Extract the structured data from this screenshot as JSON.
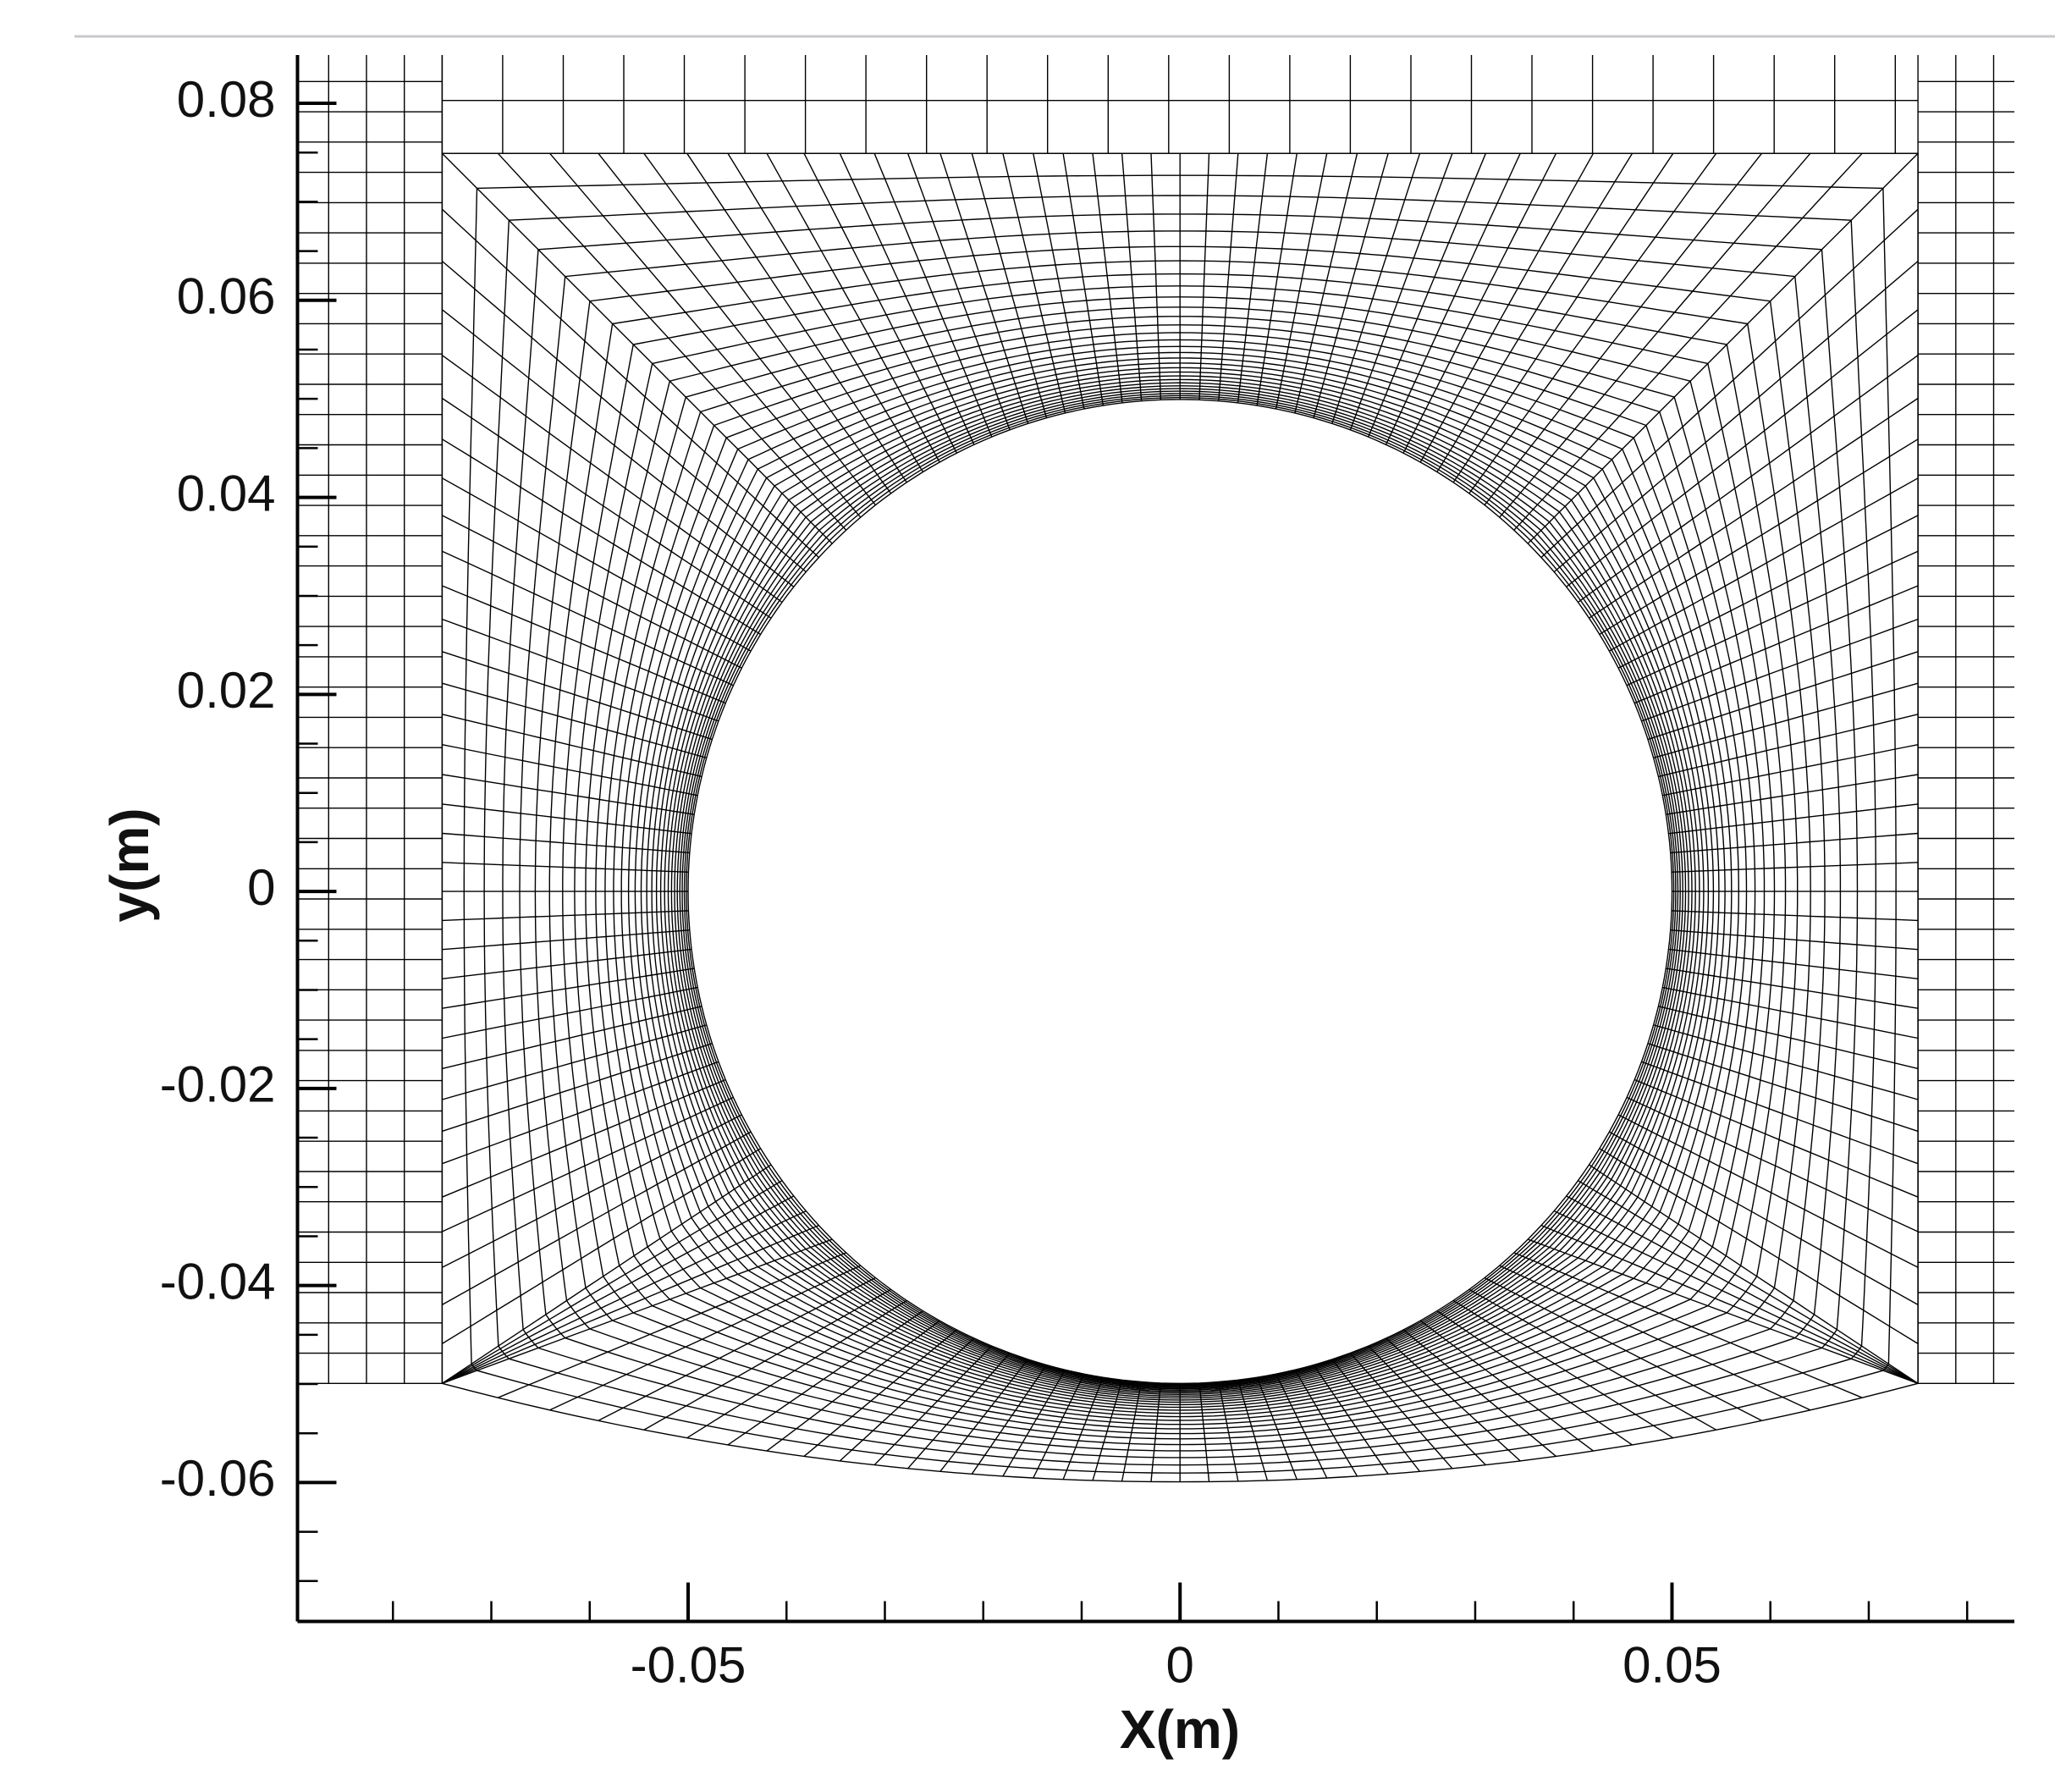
{
  "chart_data": {
    "type": "mesh",
    "xlabel": "X(m)",
    "ylabel": "y(m)",
    "xlim": [
      -0.0897,
      0.0848
    ],
    "ylim": [
      -0.0741,
      0.0849
    ],
    "xticks": [
      -0.05,
      0,
      0.05
    ],
    "yticks": [
      0.08,
      0.06,
      0.04,
      0.02,
      0,
      -0.02,
      -0.04,
      -0.06
    ],
    "xminorticks": [
      -0.08,
      -0.07,
      -0.06,
      -0.04,
      -0.03,
      -0.02,
      -0.01,
      0.01,
      0.02,
      0.03,
      0.04,
      0.06,
      0.07,
      0.08
    ],
    "yminorticks": [
      0.075,
      0.07,
      0.065,
      0.055,
      0.05,
      0.045,
      0.035,
      0.03,
      0.025,
      0.015,
      0.01,
      0.005,
      -0.005,
      -0.01,
      -0.015,
      -0.025,
      -0.03,
      -0.035,
      -0.045,
      -0.05,
      -0.055,
      -0.065,
      -0.07
    ]
  }
}
